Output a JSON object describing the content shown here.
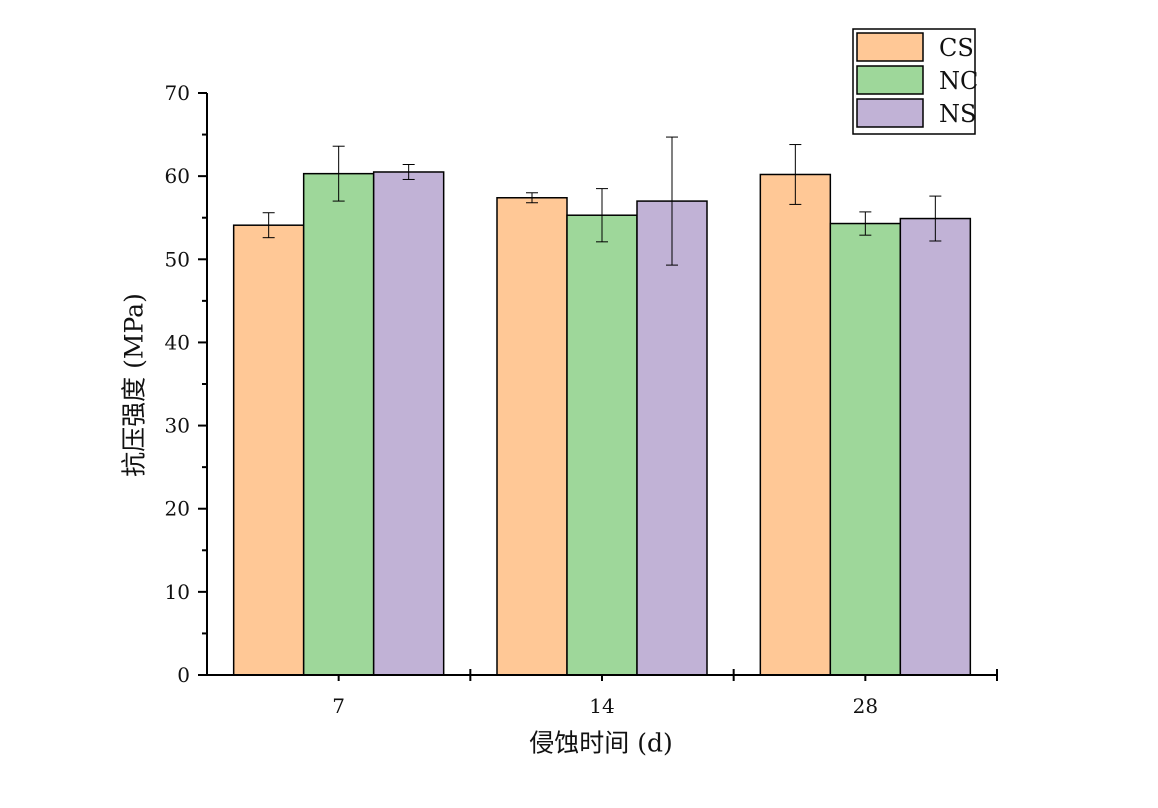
{
  "chart_data": {
    "type": "bar",
    "title": "",
    "xlabel": "侵蚀时间 (d)",
    "ylabel": "抗压强度 (MPa)",
    "categories": [
      "7",
      "14",
      "28"
    ],
    "ylim": [
      0,
      70
    ],
    "yticks": [
      0,
      10,
      20,
      30,
      40,
      50,
      60,
      70
    ],
    "grid": false,
    "legend_position": "top-right",
    "series": [
      {
        "name": "CS",
        "color": "#FFC896",
        "values": [
          54.1,
          57.4,
          60.2
        ],
        "errors": [
          1.5,
          0.6,
          3.6
        ]
      },
      {
        "name": "NC",
        "color": "#9ED79A",
        "values": [
          60.3,
          55.3,
          54.3
        ],
        "errors": [
          3.3,
          3.2,
          1.4
        ]
      },
      {
        "name": "NS",
        "color": "#C1B2D6",
        "values": [
          60.5,
          57.0,
          54.9
        ],
        "errors": [
          0.9,
          7.7,
          2.7
        ]
      }
    ]
  }
}
